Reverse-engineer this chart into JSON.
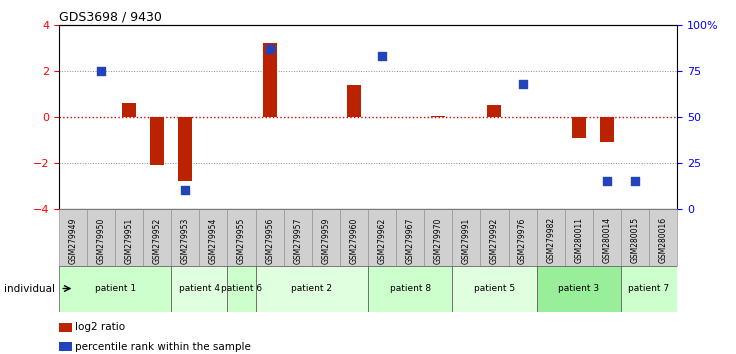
{
  "title": "GDS3698 / 9430",
  "samples": [
    "GSM279949",
    "GSM279950",
    "GSM279951",
    "GSM279952",
    "GSM279953",
    "GSM279954",
    "GSM279955",
    "GSM279956",
    "GSM279957",
    "GSM279959",
    "GSM279960",
    "GSM279962",
    "GSM279967",
    "GSM279970",
    "GSM279991",
    "GSM279992",
    "GSM279976",
    "GSM279982",
    "GSM280011",
    "GSM280014",
    "GSM280015",
    "GSM280016"
  ],
  "log2_ratio": [
    0.0,
    0.0,
    0.6,
    -2.1,
    -2.8,
    0.0,
    0.0,
    3.2,
    0.0,
    0.0,
    1.4,
    0.0,
    0.0,
    0.04,
    0.0,
    0.5,
    0.0,
    0.0,
    -0.9,
    -1.1,
    0.0,
    0.0
  ],
  "percentile": [
    null,
    75,
    null,
    null,
    10,
    null,
    null,
    87,
    null,
    null,
    null,
    83,
    null,
    null,
    null,
    null,
    68,
    null,
    null,
    15,
    15,
    null
  ],
  "patients": [
    {
      "label": "patient 1",
      "start": 0,
      "end": 4,
      "color": "#ccffcc"
    },
    {
      "label": "patient 4",
      "start": 4,
      "end": 6,
      "color": "#dfffdf"
    },
    {
      "label": "patient 6",
      "start": 6,
      "end": 7,
      "color": "#ccffcc"
    },
    {
      "label": "patient 2",
      "start": 7,
      "end": 11,
      "color": "#dfffdf"
    },
    {
      "label": "patient 8",
      "start": 11,
      "end": 14,
      "color": "#ccffcc"
    },
    {
      "label": "patient 5",
      "start": 14,
      "end": 17,
      "color": "#dfffdf"
    },
    {
      "label": "patient 3",
      "start": 17,
      "end": 20,
      "color": "#99ee99"
    },
    {
      "label": "patient 7",
      "start": 20,
      "end": 22,
      "color": "#ccffcc"
    }
  ],
  "ylim": [
    -4.0,
    4.0
  ],
  "y2lim": [
    0,
    100
  ],
  "yticks_left": [
    -4,
    -2,
    0,
    2,
    4
  ],
  "yticks_right": [
    0,
    25,
    50,
    75,
    100
  ],
  "bar_color": "#bb2200",
  "dot_color": "#2244bb",
  "zero_line_color": "#dd0000",
  "grid_color": "#888888",
  "sample_box_color": "#d0d0d0",
  "plot_bg": "#ffffff"
}
